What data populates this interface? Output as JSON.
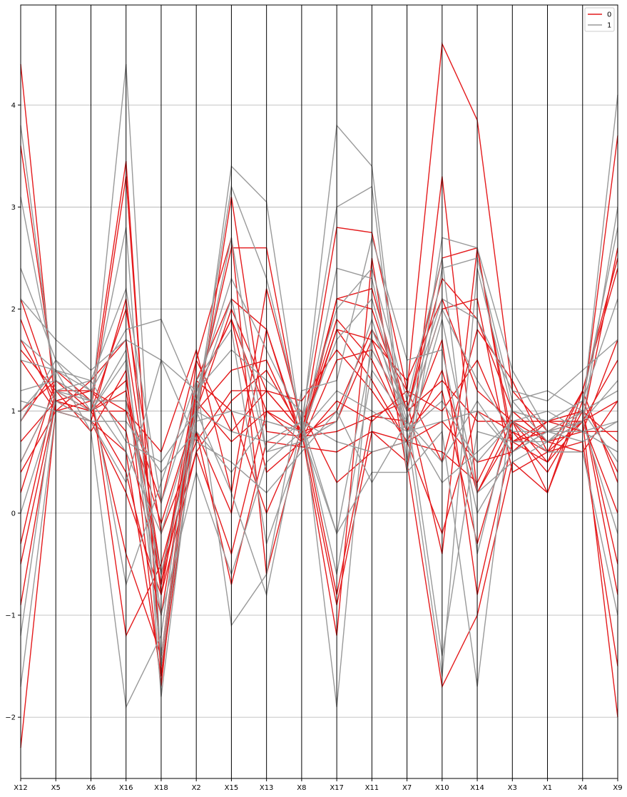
{
  "chart_data": {
    "type": "parallel_coordinates",
    "title": "",
    "xlabel": "",
    "ylabel": "",
    "grid": true,
    "legend_position": "top-right",
    "axes": [
      "X12",
      "X5",
      "X6",
      "X16",
      "X18",
      "X2",
      "X15",
      "X13",
      "X8",
      "X17",
      "X11",
      "X7",
      "X10",
      "X14",
      "X3",
      "X1",
      "X4",
      "X9"
    ],
    "ylim": [
      -2.6,
      4.98
    ],
    "yticks": [
      -2,
      -1,
      0,
      1,
      2,
      3,
      4
    ],
    "ytick_labels": [
      "−2",
      "−1",
      "0",
      "1",
      "2",
      "3",
      "4"
    ],
    "series": [
      {
        "name": "0",
        "color": "#e41a1c",
        "lines": [
          [
            4.4,
            1.0,
            1.1,
            3.45,
            -1.6,
            0.9,
            3.1,
            0.8,
            0.75,
            2.8,
            2.75,
            1.2,
            4.6,
            3.85,
            1.2,
            0.8,
            1.0,
            3.7
          ],
          [
            3.6,
            1.2,
            1.0,
            3.3,
            -1.5,
            1.1,
            2.6,
            2.6,
            0.8,
            -1.2,
            2.5,
            0.4,
            3.3,
            0.2,
            0.8,
            0.6,
            0.9,
            2.6
          ],
          [
            2.1,
            1.1,
            0.9,
            2.1,
            -0.8,
            1.2,
            1.9,
            1.0,
            0.7,
            2.1,
            2.0,
            1.0,
            2.5,
            2.6,
            0.7,
            0.5,
            1.2,
            2.5
          ],
          [
            1.9,
            1.0,
            1.3,
            1.7,
            -0.6,
            1.0,
            1.4,
            1.5,
            0.75,
            1.8,
            1.7,
            1.3,
            2.1,
            1.2,
            0.9,
            0.9,
            0.8,
            1.7
          ],
          [
            1.7,
            1.1,
            1.2,
            -1.2,
            -0.5,
            0.8,
            -0.7,
            0.7,
            0.65,
            0.6,
            0.8,
            0.7,
            0.6,
            0.3,
            1.0,
            0.7,
            0.6,
            1.1
          ],
          [
            1.6,
            1.2,
            1.0,
            0.4,
            -1.0,
            1.1,
            0.7,
            1.0,
            0.8,
            -0.9,
            0.8,
            0.5,
            -1.7,
            -1.0,
            0.5,
            0.2,
            1.1,
            0.4
          ],
          [
            1.5,
            1.0,
            1.0,
            1.2,
            -0.7,
            1.3,
            2.1,
            1.8,
            0.7,
            1.5,
            1.6,
            1.0,
            2.3,
            1.9,
            1.0,
            0.7,
            0.9,
            0.0
          ],
          [
            1.0,
            1.3,
            1.1,
            1.1,
            0.1,
            1.5,
            2.7,
            -0.6,
            0.75,
            0.8,
            0.95,
            1.1,
            -0.4,
            2.6,
            0.6,
            0.9,
            1.0,
            -0.8
          ],
          [
            0.9,
            1.4,
            1.1,
            -0.4,
            -1.4,
            1.2,
            1.9,
            0.4,
            0.7,
            1.1,
            0.9,
            1.2,
            0.5,
            1.8,
            1.3,
            0.6,
            0.7,
            -1.5
          ],
          [
            0.7,
            1.1,
            1.0,
            2.0,
            -0.2,
            0.7,
            1.2,
            1.2,
            0.8,
            1.9,
            1.5,
            0.8,
            1.7,
            -0.8,
            0.7,
            0.9,
            0.9,
            -2.0
          ],
          [
            0.5,
            1.2,
            0.8,
            1.4,
            -1.7,
            1.5,
            0.8,
            1.2,
            1.1,
            1.6,
            1.2,
            0.7,
            1.4,
            0.2,
            0.9,
            0.7,
            0.8,
            0.8
          ],
          [
            0.4,
            1.0,
            0.9,
            0.2,
            -0.8,
            0.6,
            -0.4,
            1.0,
            1.0,
            0.3,
            0.6,
            0.7,
            0.9,
            0.5,
            0.6,
            0.9,
            1.0,
            0.7
          ],
          [
            0.2,
            1.3,
            1.0,
            1.3,
            -0.6,
            0.6,
            1.1,
            1.4,
            0.8,
            2.1,
            2.2,
            1.0,
            1.3,
            0.9,
            0.9,
            0.5,
            0.9,
            1.1
          ],
          [
            -0.3,
            1.2,
            1.2,
            1.0,
            0.6,
            1.6,
            0.2,
            2.2,
            0.9,
            -0.8,
            0.95,
            0.9,
            2.0,
            2.1,
            0.4,
            0.6,
            1.2,
            2.4
          ],
          [
            -0.5,
            1.1,
            1.2,
            0.8,
            -0.7,
            0.8,
            0.0,
            1.8,
            0.75,
            1.0,
            1.8,
            1.2,
            1.0,
            1.5,
            0.7,
            0.8,
            0.9,
            1.5
          ],
          [
            -0.9,
            1.1,
            1.0,
            1.0,
            -0.1,
            1.0,
            2.0,
            1.2,
            0.8,
            1.8,
            1.3,
            0.7,
            -0.2,
            1.0,
            0.8,
            0.4,
            1.0,
            -0.5
          ],
          [
            -2.3,
            1.0,
            0.9,
            0.6,
            -1.6,
            1.3,
            1.0,
            0.0,
            0.8,
            0.9,
            1.7,
            0.8,
            1.2,
            -0.3,
            0.9,
            0.2,
            1.2,
            0.3
          ]
        ]
      },
      {
        "name": "1",
        "color": "#999999",
        "lines": [
          [
            3.8,
            1.2,
            1.0,
            4.4,
            -1.5,
            0.9,
            3.4,
            3.05,
            0.8,
            3.8,
            3.4,
            0.5,
            2.7,
            2.6,
            1.4,
            0.8,
            1.0,
            4.1
          ],
          [
            3.1,
            1.3,
            1.1,
            2.8,
            -1.8,
            1.0,
            3.2,
            2.3,
            0.9,
            3.0,
            3.2,
            0.4,
            2.4,
            2.5,
            1.1,
            0.7,
            0.9,
            3.0
          ],
          [
            2.4,
            1.5,
            1.2,
            1.8,
            1.9,
            1.1,
            2.7,
            0.6,
            0.7,
            2.4,
            2.3,
            0.8,
            -1.6,
            2.4,
            1.0,
            0.9,
            1.1,
            2.1
          ],
          [
            2.1,
            1.7,
            1.4,
            1.7,
            1.5,
            1.2,
            1.6,
            1.3,
            1.0,
            -1.9,
            1.8,
            1.0,
            2.1,
            1.9,
            1.2,
            1.1,
            1.4,
            1.7
          ],
          [
            1.7,
            1.4,
            1.3,
            0.7,
            0.5,
            1.0,
            0.2,
            -0.8,
            0.9,
            -0.2,
            0.4,
            0.4,
            0.8,
            -1.7,
            1.1,
            1.2,
            1.0,
            1.2
          ],
          [
            1.5,
            1.4,
            1.2,
            -0.7,
            0.3,
            1.3,
            -1.1,
            -0.6,
            1.2,
            1.3,
            2.7,
            1.5,
            1.6,
            0.0,
            0.6,
            0.8,
            0.9,
            -0.2
          ],
          [
            1.2,
            1.3,
            1.1,
            1.1,
            -0.6,
            0.9,
            1.0,
            0.9,
            0.8,
            1.7,
            2.1,
            0.9,
            2.0,
            1.3,
            0.8,
            0.8,
            0.8,
            0.9
          ],
          [
            1.1,
            1.0,
            0.9,
            0.3,
            1.5,
            0.7,
            0.5,
            0.2,
            0.6,
            1.0,
            0.3,
            0.9,
            0.3,
            0.6,
            0.9,
            1.0,
            0.8,
            0.6
          ],
          [
            1.0,
            1.4,
            0.8,
            -1.9,
            -1.2,
            1.3,
            1.8,
            -0.3,
            0.7,
            0.9,
            1.9,
            0.8,
            1.1,
            0.5,
            0.9,
            0.6,
            0.6,
            -1.0
          ],
          [
            0.9,
            1.5,
            1.0,
            1.5,
            -1.0,
            0.4,
            -0.6,
            0.5,
            0.8,
            -0.2,
            1.6,
            1.0,
            -1.4,
            0.8,
            0.7,
            0.7,
            1.0,
            0.5
          ],
          [
            0.5,
            1.2,
            1.1,
            0.6,
            -0.2,
            1.0,
            0.8,
            0.7,
            0.9,
            0.7,
            0.6,
            0.7,
            1.9,
            0.2,
            0.5,
            0.7,
            0.9,
            1.3
          ],
          [
            0.0,
            1.1,
            0.9,
            0.9,
            0.4,
            0.8,
            0.4,
            0.9,
            0.8,
            1.2,
            1.0,
            0.8,
            0.9,
            1.0,
            0.6,
            0.8,
            0.7,
            0.9
          ],
          [
            -1.2,
            1.2,
            1.3,
            2.2,
            0.1,
            1.2,
            2.3,
            1.6,
            0.9,
            2.0,
            2.4,
            1.1,
            2.5,
            -0.4,
            1.0,
            0.9,
            1.1,
            2.8
          ],
          [
            -1.7,
            1.0,
            1.0,
            1.6,
            -1.4,
            1.1,
            2.1,
            0.6,
            0.9,
            -0.6,
            1.4,
            0.9,
            0.5,
            1.1,
            0.6,
            0.8,
            0.8,
            0.6
          ]
        ]
      }
    ]
  }
}
